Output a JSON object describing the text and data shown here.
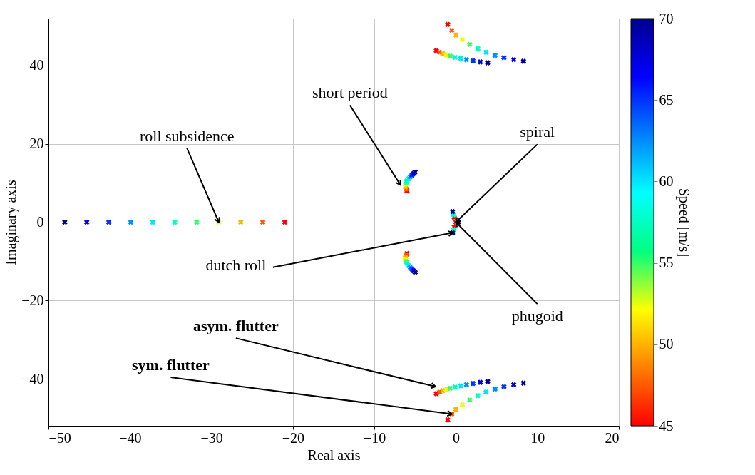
{
  "chart_data": {
    "type": "scatter",
    "xlabel": "Real axis",
    "ylabel": "Imaginary axis",
    "clabel": "Speed [m/s]",
    "xlim": [
      -50,
      20
    ],
    "xticks": [
      -50,
      -40,
      -30,
      -20,
      -10,
      0,
      10,
      20
    ],
    "ylim": [
      -52,
      52
    ],
    "yticks": [
      -40,
      -20,
      0,
      20,
      40
    ],
    "clim": [
      45,
      70
    ],
    "cticks": [
      45,
      50,
      55,
      60,
      65,
      70
    ],
    "grid": true,
    "marker": "cross",
    "x": [
      -21,
      -23.7,
      -26.4,
      -29.1,
      -31.8,
      -34.5,
      -37.2,
      -39.9,
      -42.6,
      -45.3,
      -48,
      -1.0,
      -0.5,
      0.0,
      0.8,
      1.7,
      2.7,
      3.7,
      4.8,
      5.9,
      7.1,
      8.3,
      -1.0,
      -0.5,
      0.0,
      0.8,
      1.7,
      2.7,
      3.7,
      4.8,
      5.9,
      7.1,
      8.3,
      -2.4,
      -2.0,
      -1.6,
      -1.2,
      -0.7,
      -0.1,
      0.6,
      1.3,
      2.1,
      3.0,
      3.9,
      -2.4,
      -2.0,
      -1.6,
      -1.2,
      -0.7,
      -0.1,
      0.6,
      1.3,
      2.1,
      3.0,
      3.9,
      -6.0,
      -6.1,
      -6.2,
      -6.2,
      -6.1,
      -6.0,
      -5.8,
      -5.6,
      -5.4,
      -5.2,
      -5.0,
      -6.0,
      -6.1,
      -6.2,
      -6.2,
      -6.1,
      -6.0,
      -5.8,
      -5.6,
      -5.4,
      -5.2,
      -5.0,
      -0.2,
      -0.3,
      -0.4,
      -0.2,
      -0.3,
      -0.4,
      0.0,
      0.2,
      0.3
    ],
    "values": [
      0,
      0,
      0,
      0,
      0,
      0,
      0,
      0,
      0,
      0,
      0,
      50.5,
      49.0,
      47.8,
      46.6,
      45.4,
      44.3,
      43.4,
      42.6,
      42.0,
      41.5,
      41.1,
      -50.5,
      -49.0,
      -47.8,
      -46.6,
      -45.4,
      -44.3,
      -43.4,
      -42.6,
      -42.0,
      -41.5,
      -41.1,
      43.8,
      43.4,
      43.0,
      42.7,
      42.4,
      42.1,
      41.8,
      41.5,
      41.2,
      40.9,
      40.7,
      -43.8,
      -43.4,
      -43.0,
      -42.7,
      -42.4,
      -42.1,
      -41.8,
      -41.5,
      -41.2,
      -40.9,
      -40.7,
      8.0,
      8.5,
      9.0,
      9.6,
      10.1,
      10.6,
      11.1,
      11.6,
      12.0,
      12.4,
      12.8,
      -8.0,
      -8.5,
      -9.0,
      -9.6,
      -10.1,
      -10.6,
      -11.1,
      -11.6,
      -12.0,
      -12.4,
      -12.8,
      1.2,
      1.9,
      2.7,
      -1.2,
      -1.9,
      -2.7,
      0,
      0,
      0
    ],
    "cvalues": [
      45,
      47.5,
      50,
      52.5,
      55,
      57.5,
      60,
      62.5,
      65,
      67.5,
      70,
      45,
      47.5,
      50,
      52.5,
      55,
      57.5,
      60,
      62.5,
      65,
      67.5,
      70,
      45,
      47.5,
      50,
      52.5,
      55,
      57.5,
      60,
      62.5,
      65,
      67.5,
      70,
      45,
      47.5,
      50,
      52.5,
      55,
      57.5,
      60,
      62.5,
      65,
      67.5,
      70,
      45,
      47.5,
      50,
      52.5,
      55,
      57.5,
      60,
      62.5,
      65,
      67.5,
      70,
      45,
      47.5,
      50,
      52.5,
      55,
      57.5,
      60,
      62.5,
      65,
      67.5,
      70,
      45,
      47.5,
      50,
      52.5,
      55,
      57.5,
      60,
      62.5,
      65,
      67.5,
      70,
      45,
      57.5,
      70,
      45,
      57.5,
      70,
      45,
      57.5,
      70
    ],
    "annotations": [
      {
        "text": "roll subsidence",
        "x": -29.1,
        "y": 0
      },
      {
        "text": "short period",
        "x": -6.8,
        "y": 9.5
      },
      {
        "text": "spiral",
        "x": 0,
        "y": 0
      },
      {
        "text": "dutch roll",
        "x": -0.4,
        "y": -2.7
      },
      {
        "text": "phugoid",
        "x": 0,
        "y": 0
      },
      {
        "text": "asym. flutter",
        "x": -2.5,
        "y": -42
      },
      {
        "text": "sym. flutter",
        "x": -0.5,
        "y": -49.0
      }
    ]
  }
}
